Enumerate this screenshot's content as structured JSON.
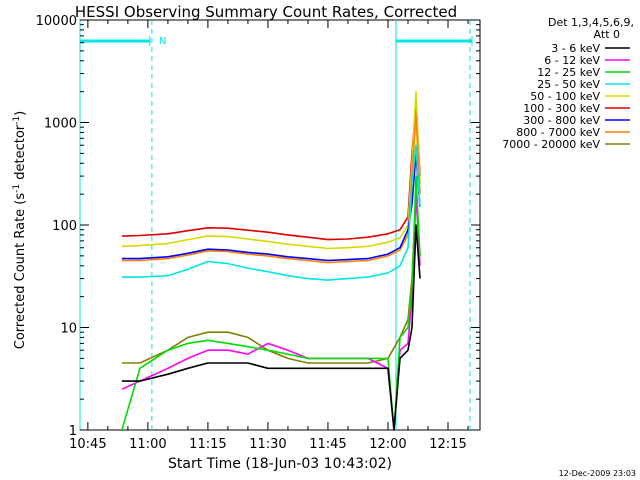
{
  "chart_data": {
    "type": "line",
    "title": "HESSI Observing Summary Count Rates, Corrected",
    "xlabel": "Start Time (18-Jun-03 10:43:02)",
    "ylabel_main": "Corrected Count Rate (s",
    "ylabel_sup1": "-1",
    "ylabel_mid": " detector",
    "ylabel_sup2": "-1",
    "ylabel_end": ")",
    "y_scale": "log",
    "ylim": [
      1,
      10000
    ],
    "xlim": [
      "10:43:02",
      "12:23:00"
    ],
    "x_ticks": [
      "10:45",
      "11:00",
      "11:15",
      "11:30",
      "11:45",
      "12:00",
      "12:15"
    ],
    "y_ticks": [
      "1",
      "10",
      "100",
      "1000",
      "10000"
    ],
    "footer_date": "12-Dec-2009 23:03",
    "legend": {
      "placement": "right",
      "header_line1": "Det 1,3,4,5,6,9,",
      "header_line2": "Att 0",
      "entries": [
        {
          "label": "3 - 6 keV",
          "color": "#000000"
        },
        {
          "label": "6 - 12 keV",
          "color": "#ff00ff"
        },
        {
          "label": "12 - 25 keV",
          "color": "#00dd00"
        },
        {
          "label": "25 - 50 keV",
          "color": "#00e5e5"
        },
        {
          "label": "50 - 100 keV",
          "color": "#d8d800"
        },
        {
          "label": "100 - 300 keV",
          "color": "#e00000"
        },
        {
          "label": "300 - 800 keV",
          "color": "#0000ff"
        },
        {
          "label": "800 - 7000 keV",
          "color": "#ff8000"
        },
        {
          "label": "7000 - 20000 keV",
          "color": "#808000"
        }
      ]
    },
    "annotations": {
      "saa_bars": [
        {
          "start": "10:43:02",
          "end": "11:00:30"
        },
        {
          "start": "12:02:00",
          "end": "12:21:00"
        }
      ],
      "night_lines": [
        "11:01:00",
        "12:20:30"
      ],
      "day_lines": [
        "10:43:02",
        "12:02:00"
      ],
      "night_label": "N",
      "night_label_at": "11:02:00"
    },
    "series": [
      {
        "name": "100 - 300 keV",
        "color": "#e00000",
        "x": [
          "10:53:30",
          "10:58",
          "11:05",
          "11:10",
          "11:15",
          "11:20",
          "11:25",
          "11:30",
          "11:35",
          "11:40",
          "11:45",
          "11:50",
          "11:55",
          "12:00",
          "12:03",
          "12:05",
          "12:06",
          "12:07",
          "12:08"
        ],
        "y": [
          78,
          79,
          82,
          88,
          94,
          93,
          89,
          85,
          80,
          76,
          72,
          73,
          76,
          82,
          90,
          120,
          500,
          1500,
          300
        ]
      },
      {
        "name": "50 - 100 keV",
        "color": "#d8d800",
        "x": [
          "10:53:30",
          "10:58",
          "11:05",
          "11:10",
          "11:15",
          "11:20",
          "11:25",
          "11:30",
          "11:35",
          "11:40",
          "11:45",
          "11:50",
          "11:55",
          "12:00",
          "12:03",
          "12:05",
          "12:06",
          "12:07",
          "12:08"
        ],
        "y": [
          62,
          63,
          66,
          72,
          78,
          77,
          73,
          69,
          65,
          62,
          59,
          60,
          62,
          68,
          75,
          100,
          400,
          2000,
          250
        ]
      },
      {
        "name": "800 - 7000 keV",
        "color": "#ff8000",
        "x": [
          "10:53:30",
          "10:58",
          "11:05",
          "11:10",
          "11:15",
          "11:20",
          "11:25",
          "11:30",
          "11:35",
          "11:40",
          "11:45",
          "11:50",
          "11:55",
          "12:00",
          "12:03",
          "12:05",
          "12:06",
          "12:07",
          "12:08"
        ],
        "y": [
          45,
          45,
          47,
          51,
          56,
          55,
          52,
          50,
          47,
          45,
          43,
          44,
          45,
          50,
          57,
          80,
          300,
          1200,
          200
        ]
      },
      {
        "name": "300 - 800 keV",
        "color": "#0000ff",
        "x": [
          "10:53:30",
          "10:58",
          "11:05",
          "11:10",
          "11:15",
          "11:20",
          "11:25",
          "11:30",
          "11:35",
          "11:40",
          "11:45",
          "11:50",
          "11:55",
          "12:00",
          "12:03",
          "12:05",
          "12:06",
          "12:07",
          "12:08"
        ],
        "y": [
          47,
          47,
          49,
          53,
          58,
          57,
          54,
          52,
          49,
          47,
          45,
          46,
          47,
          52,
          60,
          90,
          160,
          500,
          150
        ]
      },
      {
        "name": "25 - 50 keV",
        "color": "#00e5e5",
        "x": [
          "10:53:30",
          "10:58",
          "11:05",
          "11:10",
          "11:15",
          "11:20",
          "11:25",
          "11:30",
          "11:35",
          "11:40",
          "11:45",
          "11:50",
          "11:55",
          "12:00",
          "12:03",
          "12:05",
          "12:06",
          "12:07",
          "12:08"
        ],
        "y": [
          31,
          31,
          32,
          37,
          44,
          42,
          38,
          35,
          32,
          30,
          29,
          30,
          31,
          34,
          40,
          60,
          250,
          600,
          150
        ]
      },
      {
        "name": "7000 - 20000 keV",
        "color": "#808000",
        "x": [
          "10:53:30",
          "10:58",
          "11:05",
          "11:10",
          "11:15",
          "11:20",
          "11:25",
          "11:30",
          "11:35",
          "11:40",
          "11:45",
          "11:50",
          "11:55",
          "12:00",
          "12:03",
          "12:05",
          "12:06",
          "12:07",
          "12:08"
        ],
        "y": [
          4.5,
          4.5,
          6,
          8,
          9,
          9,
          8,
          6,
          5,
          4.5,
          4.5,
          4.5,
          4.5,
          5,
          8,
          12,
          30,
          200,
          50
        ]
      },
      {
        "name": "6 - 12 keV",
        "color": "#ff00ff",
        "x": [
          "10:53:30",
          "10:58",
          "11:05",
          "11:10",
          "11:15",
          "11:20",
          "11:25",
          "11:30",
          "11:35",
          "11:40",
          "11:45",
          "11:50",
          "11:55",
          "12:00",
          "12:01:30",
          "12:03",
          "12:05",
          "12:06",
          "12:07",
          "12:08"
        ],
        "y": [
          2.5,
          3,
          4,
          5,
          6,
          6,
          5.5,
          7,
          6,
          5,
          5,
          5,
          5,
          4,
          1,
          6,
          7,
          20,
          200,
          40
        ]
      },
      {
        "name": "12 - 25 keV",
        "color": "#00dd00",
        "x": [
          "10:53:30",
          "10:58",
          "11:05",
          "11:10",
          "11:15",
          "11:20",
          "11:25",
          "11:30",
          "11:35",
          "11:40",
          "11:45",
          "11:50",
          "11:55",
          "12:00",
          "12:01:30",
          "12:03",
          "12:05",
          "12:06",
          "12:07",
          "12:08"
        ],
        "y": [
          1,
          4,
          6,
          7,
          7.5,
          7,
          6.5,
          6,
          5.5,
          5,
          5,
          5,
          5,
          5,
          1,
          8,
          10,
          25,
          300,
          50
        ]
      },
      {
        "name": "3 - 6 keV",
        "color": "#000000",
        "x": [
          "10:53:30",
          "10:58",
          "11:05",
          "11:10",
          "11:15",
          "11:20",
          "11:25",
          "11:30",
          "11:35",
          "11:40",
          "11:45",
          "11:50",
          "11:55",
          "12:00",
          "12:01:30",
          "12:03",
          "12:05",
          "12:06",
          "12:07",
          "12:08"
        ],
        "y": [
          3,
          3,
          3.5,
          4,
          4.5,
          4.5,
          4.5,
          4,
          4,
          4,
          4,
          4,
          4,
          4,
          1,
          5,
          6,
          10,
          100,
          30
        ]
      }
    ]
  }
}
